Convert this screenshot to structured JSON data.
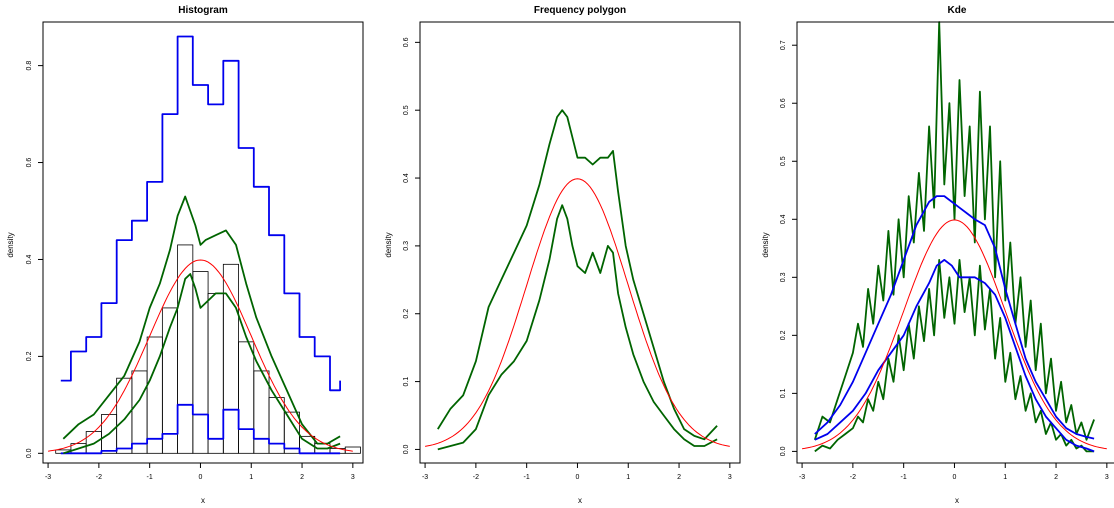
{
  "colors": {
    "normal": "#ff0000",
    "envelope": "#006400",
    "outer": "#0000ee",
    "bar_stroke": "#000000"
  },
  "chart_data": [
    {
      "type": "bar",
      "title": "Histogram",
      "xlabel": "x",
      "ylabel": "density",
      "xlim": [
        -3.1,
        3.2
      ],
      "ylim": [
        -0.02,
        0.89
      ],
      "xticks": [
        "-3",
        "-2",
        "-1",
        "0",
        "1",
        "2",
        "3"
      ],
      "yticks": [
        "0.0",
        "0.2",
        "0.4",
        "0.6",
        "0.8"
      ],
      "bins": {
        "edges": [
          -2.85,
          -2.55,
          -2.25,
          -1.95,
          -1.65,
          -1.35,
          -1.05,
          -0.75,
          -0.45,
          -0.15,
          0.15,
          0.45,
          0.75,
          1.05,
          1.35,
          1.65,
          1.95,
          2.25,
          2.55,
          2.85,
          3.15
        ],
        "values": [
          0.007,
          0.02,
          0.045,
          0.08,
          0.155,
          0.17,
          0.24,
          0.3,
          0.43,
          0.375,
          0.33,
          0.39,
          0.23,
          0.17,
          0.115,
          0.085,
          0.035,
          0.02,
          0.01,
          0.013
        ]
      },
      "series": [
        {
          "style": "step",
          "color": "outer",
          "x": [
            -2.75,
            -2.55,
            -2.25,
            -1.95,
            -1.65,
            -1.35,
            -1.05,
            -0.75,
            -0.45,
            -0.15,
            0.15,
            0.45,
            0.75,
            1.05,
            1.35,
            1.65,
            1.95,
            2.25,
            2.55,
            2.75
          ],
          "y": [
            0.15,
            0.21,
            0.24,
            0.31,
            0.44,
            0.48,
            0.56,
            0.7,
            0.86,
            0.76,
            0.72,
            0.81,
            0.63,
            0.55,
            0.45,
            0.33,
            0.24,
            0.2,
            0.13,
            0.15
          ]
        },
        {
          "style": "step",
          "color": "outer",
          "x": [
            -2.75,
            -2.25,
            -1.95,
            -1.65,
            -1.35,
            -1.05,
            -0.75,
            -0.45,
            -0.15,
            0.15,
            0.45,
            0.75,
            1.05,
            1.35,
            1.65,
            1.95,
            2.25,
            2.75
          ],
          "y": [
            0.0,
            0.0,
            0.005,
            0.01,
            0.02,
            0.03,
            0.04,
            0.1,
            0.08,
            0.03,
            0.09,
            0.05,
            0.03,
            0.02,
            0.01,
            0.0,
            0.0,
            0.0
          ]
        },
        {
          "style": "line",
          "color": "envelope",
          "x": [
            -2.7,
            -2.4,
            -2.1,
            -1.8,
            -1.5,
            -1.2,
            -1.0,
            -0.8,
            -0.6,
            -0.45,
            -0.3,
            -0.2,
            -0.1,
            0.0,
            0.1,
            0.3,
            0.5,
            0.7,
            0.9,
            1.1,
            1.4,
            1.7,
            2.0,
            2.3,
            2.5,
            2.75
          ],
          "y": [
            0.03,
            0.06,
            0.08,
            0.12,
            0.16,
            0.23,
            0.3,
            0.35,
            0.42,
            0.49,
            0.53,
            0.5,
            0.47,
            0.43,
            0.44,
            0.45,
            0.46,
            0.43,
            0.35,
            0.28,
            0.2,
            0.13,
            0.06,
            0.02,
            0.02,
            0.035
          ]
        },
        {
          "style": "line",
          "color": "envelope",
          "x": [
            -2.7,
            -2.4,
            -2.1,
            -1.8,
            -1.5,
            -1.2,
            -1.0,
            -0.8,
            -0.6,
            -0.45,
            -0.3,
            -0.2,
            -0.1,
            0.0,
            0.1,
            0.3,
            0.5,
            0.7,
            0.9,
            1.1,
            1.4,
            1.7,
            2.0,
            2.3,
            2.5,
            2.75
          ],
          "y": [
            0.0,
            0.01,
            0.02,
            0.04,
            0.07,
            0.11,
            0.15,
            0.2,
            0.26,
            0.3,
            0.36,
            0.37,
            0.34,
            0.3,
            0.31,
            0.33,
            0.33,
            0.3,
            0.24,
            0.19,
            0.13,
            0.08,
            0.03,
            0.01,
            0.01,
            0.02
          ]
        }
      ]
    },
    {
      "type": "line",
      "title": "Frequency polygon",
      "xlabel": "x",
      "ylabel": "density",
      "xlim": [
        -3.1,
        3.2
      ],
      "ylim": [
        -0.02,
        0.63
      ],
      "xticks": [
        "-3",
        "-2",
        "-1",
        "0",
        "1",
        "2",
        "3"
      ],
      "yticks": [
        "0.0",
        "0.1",
        "0.2",
        "0.3",
        "0.4",
        "0.5",
        "0.6"
      ],
      "series": [
        {
          "style": "line",
          "color": "envelope",
          "x": [
            -2.75,
            -2.5,
            -2.25,
            -2.0,
            -1.75,
            -1.5,
            -1.25,
            -1.0,
            -0.75,
            -0.55,
            -0.4,
            -0.3,
            -0.2,
            -0.1,
            0.0,
            0.15,
            0.3,
            0.45,
            0.6,
            0.7,
            0.8,
            0.95,
            1.1,
            1.3,
            1.5,
            1.7,
            1.9,
            2.1,
            2.3,
            2.5,
            2.75
          ],
          "y": [
            0.03,
            0.06,
            0.08,
            0.13,
            0.21,
            0.25,
            0.29,
            0.33,
            0.39,
            0.45,
            0.49,
            0.5,
            0.49,
            0.46,
            0.43,
            0.43,
            0.42,
            0.43,
            0.43,
            0.44,
            0.38,
            0.3,
            0.25,
            0.2,
            0.15,
            0.1,
            0.06,
            0.03,
            0.02,
            0.015,
            0.035
          ]
        },
        {
          "style": "line",
          "color": "envelope",
          "x": [
            -2.75,
            -2.5,
            -2.25,
            -2.0,
            -1.75,
            -1.5,
            -1.25,
            -1.0,
            -0.75,
            -0.55,
            -0.4,
            -0.3,
            -0.2,
            -0.1,
            0.0,
            0.15,
            0.3,
            0.45,
            0.6,
            0.7,
            0.8,
            0.95,
            1.1,
            1.3,
            1.5,
            1.7,
            1.9,
            2.1,
            2.3,
            2.5,
            2.75
          ],
          "y": [
            0.0,
            0.005,
            0.01,
            0.03,
            0.08,
            0.11,
            0.13,
            0.16,
            0.22,
            0.28,
            0.34,
            0.36,
            0.34,
            0.3,
            0.27,
            0.26,
            0.29,
            0.26,
            0.3,
            0.29,
            0.23,
            0.18,
            0.14,
            0.1,
            0.07,
            0.05,
            0.03,
            0.015,
            0.005,
            0.005,
            0.015
          ]
        }
      ]
    },
    {
      "type": "line",
      "title": "Kde",
      "xlabel": "x",
      "ylabel": "density",
      "xlim": [
        -3.1,
        3.2
      ],
      "ylim": [
        -0.02,
        0.74
      ],
      "xticks": [
        "-3",
        "-2",
        "-1",
        "0",
        "1",
        "2",
        "3"
      ],
      "yticks": [
        "0.0",
        "0.1",
        "0.2",
        "0.3",
        "0.4",
        "0.5",
        "0.6",
        "0.7"
      ],
      "series": [
        {
          "style": "line",
          "color": "envelope",
          "x": [
            -2.75,
            -2.6,
            -2.45,
            -2.3,
            -2.15,
            -2.0,
            -1.9,
            -1.8,
            -1.7,
            -1.6,
            -1.5,
            -1.4,
            -1.3,
            -1.2,
            -1.1,
            -1.0,
            -0.9,
            -0.8,
            -0.7,
            -0.6,
            -0.5,
            -0.4,
            -0.3,
            -0.2,
            -0.1,
            0.0,
            0.1,
            0.2,
            0.3,
            0.4,
            0.5,
            0.6,
            0.7,
            0.8,
            0.9,
            1.0,
            1.1,
            1.2,
            1.3,
            1.4,
            1.5,
            1.6,
            1.7,
            1.8,
            1.9,
            2.0,
            2.1,
            2.2,
            2.3,
            2.4,
            2.5,
            2.6,
            2.75
          ],
          "y": [
            0.02,
            0.06,
            0.05,
            0.09,
            0.13,
            0.17,
            0.22,
            0.18,
            0.28,
            0.22,
            0.32,
            0.26,
            0.38,
            0.27,
            0.4,
            0.3,
            0.44,
            0.36,
            0.48,
            0.38,
            0.56,
            0.42,
            0.74,
            0.46,
            0.6,
            0.4,
            0.64,
            0.44,
            0.56,
            0.36,
            0.62,
            0.4,
            0.56,
            0.3,
            0.5,
            0.26,
            0.36,
            0.22,
            0.3,
            0.18,
            0.26,
            0.14,
            0.22,
            0.1,
            0.16,
            0.07,
            0.12,
            0.05,
            0.08,
            0.03,
            0.05,
            0.02,
            0.055
          ]
        },
        {
          "style": "line",
          "color": "envelope",
          "x": [
            -2.75,
            -2.6,
            -2.45,
            -2.3,
            -2.15,
            -2.0,
            -1.9,
            -1.8,
            -1.7,
            -1.6,
            -1.5,
            -1.4,
            -1.3,
            -1.2,
            -1.1,
            -1.0,
            -0.9,
            -0.8,
            -0.7,
            -0.6,
            -0.5,
            -0.4,
            -0.3,
            -0.2,
            -0.1,
            0.0,
            0.1,
            0.2,
            0.3,
            0.4,
            0.5,
            0.6,
            0.7,
            0.8,
            0.9,
            1.0,
            1.1,
            1.2,
            1.3,
            1.4,
            1.5,
            1.6,
            1.7,
            1.8,
            1.9,
            2.0,
            2.1,
            2.2,
            2.3,
            2.4,
            2.5,
            2.6,
            2.75
          ],
          "y": [
            0.0,
            0.01,
            0.005,
            0.02,
            0.03,
            0.04,
            0.06,
            0.05,
            0.09,
            0.07,
            0.12,
            0.09,
            0.16,
            0.12,
            0.2,
            0.14,
            0.22,
            0.16,
            0.25,
            0.19,
            0.28,
            0.2,
            0.33,
            0.23,
            0.3,
            0.22,
            0.33,
            0.24,
            0.3,
            0.2,
            0.32,
            0.21,
            0.28,
            0.16,
            0.23,
            0.12,
            0.17,
            0.09,
            0.13,
            0.07,
            0.1,
            0.05,
            0.07,
            0.03,
            0.05,
            0.02,
            0.03,
            0.01,
            0.02,
            0.005,
            0.01,
            0.0,
            0.0
          ]
        },
        {
          "style": "line",
          "color": "outer",
          "x": [
            -2.75,
            -2.5,
            -2.25,
            -2.0,
            -1.75,
            -1.5,
            -1.25,
            -1.0,
            -0.75,
            -0.5,
            -0.35,
            -0.2,
            -0.05,
            0.1,
            0.25,
            0.4,
            0.6,
            0.8,
            1.0,
            1.2,
            1.4,
            1.6,
            1.8,
            2.0,
            2.2,
            2.4,
            2.6,
            2.75
          ],
          "y": [
            0.03,
            0.05,
            0.08,
            0.12,
            0.17,
            0.22,
            0.27,
            0.33,
            0.39,
            0.43,
            0.44,
            0.44,
            0.43,
            0.42,
            0.41,
            0.4,
            0.39,
            0.35,
            0.28,
            0.22,
            0.16,
            0.12,
            0.09,
            0.06,
            0.04,
            0.03,
            0.025,
            0.022
          ]
        },
        {
          "style": "line",
          "color": "outer",
          "x": [
            -2.75,
            -2.5,
            -2.25,
            -2.0,
            -1.75,
            -1.5,
            -1.25,
            -1.0,
            -0.75,
            -0.5,
            -0.35,
            -0.2,
            -0.05,
            0.1,
            0.25,
            0.4,
            0.6,
            0.8,
            1.0,
            1.2,
            1.4,
            1.6,
            1.8,
            2.0,
            2.2,
            2.4,
            2.6,
            2.75
          ],
          "y": [
            0.02,
            0.03,
            0.05,
            0.07,
            0.1,
            0.14,
            0.17,
            0.2,
            0.25,
            0.29,
            0.32,
            0.33,
            0.32,
            0.3,
            0.3,
            0.3,
            0.29,
            0.27,
            0.23,
            0.18,
            0.13,
            0.09,
            0.06,
            0.04,
            0.02,
            0.01,
            0.005,
            0.0
          ]
        }
      ]
    }
  ]
}
